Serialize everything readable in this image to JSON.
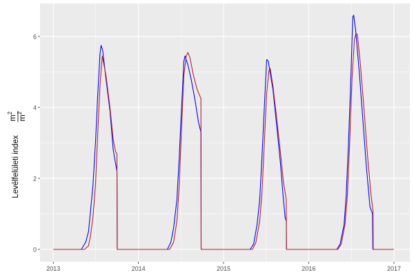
{
  "chart_data": {
    "type": "line",
    "title": "",
    "xlabel": "",
    "ylabel": "Levélfelületi index",
    "ylabel_unit_numerator": "m",
    "ylabel_unit_denominator": "m",
    "ylabel_unit_exponent": "2",
    "xlim": [
      "2012-11-05",
      "2017-03-10"
    ],
    "ylim": [
      -0.35,
      6.93
    ],
    "x_ticks": [
      "2013",
      "2014",
      "2015",
      "2016",
      "2017"
    ],
    "x_tick_dates": [
      "2013-01-01",
      "2014-01-01",
      "2015-01-01",
      "2016-01-01",
      "2017-01-01"
    ],
    "y_ticks": [
      0,
      2,
      4,
      6
    ],
    "grid": true,
    "background": "#EBEBEB",
    "series": [
      {
        "color": "#0000FF",
        "points": [
          [
            "2013-01-01",
            0
          ],
          [
            "2013-05-01",
            0
          ],
          [
            "2013-05-20",
            0.2
          ],
          [
            "2013-06-01",
            0.5
          ],
          [
            "2013-06-10",
            1.1
          ],
          [
            "2013-06-20",
            1.8
          ],
          [
            "2013-07-01",
            3.0
          ],
          [
            "2013-07-10",
            4.3
          ],
          [
            "2013-07-20",
            5.5
          ],
          [
            "2013-07-25",
            5.75
          ],
          [
            "2013-08-01",
            5.6
          ],
          [
            "2013-08-15",
            4.8
          ],
          [
            "2013-09-01",
            3.9
          ],
          [
            "2013-09-15",
            2.8
          ],
          [
            "2013-10-01",
            2.2
          ],
          [
            "2013-10-02",
            0
          ],
          [
            "2014-05-05",
            0
          ],
          [
            "2014-05-20",
            0.2
          ],
          [
            "2014-06-01",
            0.6
          ],
          [
            "2014-06-15",
            1.4
          ],
          [
            "2014-06-25",
            2.6
          ],
          [
            "2014-07-05",
            4.0
          ],
          [
            "2014-07-15",
            5.3
          ],
          [
            "2014-07-20",
            5.45
          ],
          [
            "2014-08-01",
            5.2
          ],
          [
            "2014-08-15",
            4.8
          ],
          [
            "2014-09-01",
            4.2
          ],
          [
            "2014-09-15",
            3.6
          ],
          [
            "2014-09-26",
            3.3
          ],
          [
            "2014-09-27",
            0
          ],
          [
            "2015-04-25",
            0
          ],
          [
            "2015-05-10",
            0.15
          ],
          [
            "2015-05-25",
            0.7
          ],
          [
            "2015-06-05",
            1.4
          ],
          [
            "2015-06-15",
            2.6
          ],
          [
            "2015-06-25",
            4.0
          ],
          [
            "2015-07-05",
            5.35
          ],
          [
            "2015-07-12",
            5.3
          ],
          [
            "2015-08-01",
            4.5
          ],
          [
            "2015-08-15",
            3.6
          ],
          [
            "2015-09-01",
            2.5
          ],
          [
            "2015-09-15",
            1.4
          ],
          [
            "2015-09-22",
            0.9
          ],
          [
            "2015-09-27",
            0.8
          ],
          [
            "2015-09-28",
            0
          ],
          [
            "2016-05-01",
            0
          ],
          [
            "2016-05-15",
            0.15
          ],
          [
            "2016-06-01",
            0.7
          ],
          [
            "2016-06-10",
            1.5
          ],
          [
            "2016-06-20",
            3.0
          ],
          [
            "2016-07-01",
            5.0
          ],
          [
            "2016-07-08",
            6.55
          ],
          [
            "2016-07-12",
            6.6
          ],
          [
            "2016-07-20",
            6.2
          ],
          [
            "2016-08-05",
            5.0
          ],
          [
            "2016-08-20",
            3.7
          ],
          [
            "2016-09-05",
            2.3
          ],
          [
            "2016-09-20",
            1.2
          ],
          [
            "2016-10-01",
            1.0
          ],
          [
            "2016-10-02",
            0
          ],
          [
            "2017-01-01",
            0
          ]
        ]
      },
      {
        "color": "#B22222",
        "points": [
          [
            "2013-01-01",
            0
          ],
          [
            "2013-05-15",
            0
          ],
          [
            "2013-06-01",
            0.1
          ],
          [
            "2013-06-10",
            0.4
          ],
          [
            "2013-06-20",
            0.9
          ],
          [
            "2013-07-01",
            1.8
          ],
          [
            "2013-07-10",
            3.2
          ],
          [
            "2013-07-20",
            4.6
          ],
          [
            "2013-07-30",
            5.45
          ],
          [
            "2013-08-15",
            4.9
          ],
          [
            "2013-09-01",
            4.0
          ],
          [
            "2013-09-15",
            3.1
          ],
          [
            "2013-09-25",
            2.75
          ],
          [
            "2013-10-01",
            2.7
          ],
          [
            "2013-10-02",
            0
          ],
          [
            "2014-05-15",
            0
          ],
          [
            "2014-06-01",
            0.2
          ],
          [
            "2014-06-15",
            0.8
          ],
          [
            "2014-06-25",
            1.8
          ],
          [
            "2014-07-05",
            3.4
          ],
          [
            "2014-07-15",
            4.9
          ],
          [
            "2014-07-25",
            5.45
          ],
          [
            "2014-08-01",
            5.55
          ],
          [
            "2014-08-10",
            5.4
          ],
          [
            "2014-08-25",
            4.9
          ],
          [
            "2014-09-10",
            4.5
          ],
          [
            "2014-09-26",
            4.25
          ],
          [
            "2014-09-27",
            0
          ],
          [
            "2015-05-05",
            0
          ],
          [
            "2015-05-20",
            0.2
          ],
          [
            "2015-06-05",
            0.8
          ],
          [
            "2015-06-15",
            1.6
          ],
          [
            "2015-06-25",
            3.0
          ],
          [
            "2015-07-05",
            4.4
          ],
          [
            "2015-07-15",
            5.05
          ],
          [
            "2015-07-20",
            5.1
          ],
          [
            "2015-08-01",
            4.6
          ],
          [
            "2015-08-15",
            3.8
          ],
          [
            "2015-09-01",
            2.8
          ],
          [
            "2015-09-15",
            1.9
          ],
          [
            "2015-09-27",
            1.4
          ],
          [
            "2015-09-28",
            0
          ],
          [
            "2016-05-05",
            0
          ],
          [
            "2016-05-20",
            0.15
          ],
          [
            "2016-06-05",
            0.7
          ],
          [
            "2016-06-15",
            1.5
          ],
          [
            "2016-06-25",
            3.0
          ],
          [
            "2016-07-05",
            4.8
          ],
          [
            "2016-07-15",
            5.9
          ],
          [
            "2016-07-22",
            6.1
          ],
          [
            "2016-07-28",
            6.05
          ],
          [
            "2016-08-10",
            5.2
          ],
          [
            "2016-08-25",
            4.0
          ],
          [
            "2016-09-10",
            2.6
          ],
          [
            "2016-09-25",
            1.5
          ],
          [
            "2016-10-03",
            1.1
          ],
          [
            "2016-10-04",
            0
          ],
          [
            "2017-01-01",
            0
          ]
        ]
      }
    ]
  }
}
